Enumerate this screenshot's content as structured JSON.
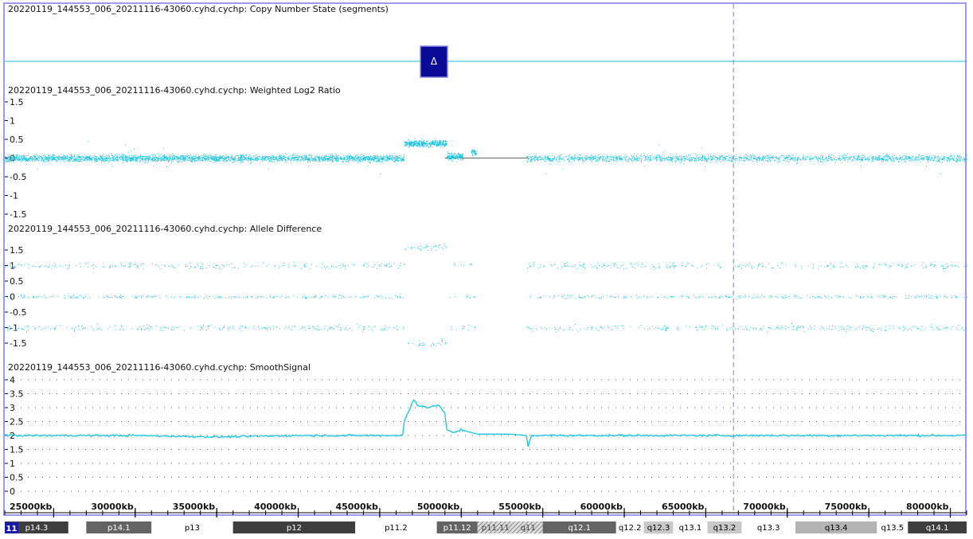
{
  "colors": {
    "frame": "#9b9bef",
    "data": "#19c3df",
    "segment_line": "#22bcd4",
    "cursor": "#9a9ae6",
    "selector_fill": "#0a0a96",
    "selector_border": "#8a8ae0"
  },
  "cursor_position_kb": 66700,
  "tracks": {
    "cn_state": {
      "title": "20220119_144553_006_20211116-43060.cyhd.cychp: Copy Number State (segments)",
      "selector_symbol": "Δ",
      "selector_icon": "delta-icon",
      "selector_position_kb": 47200
    },
    "log2": {
      "title": "20220119_144553_006_20211116-43060.cyhd.cychp: Weighted Log2 Ratio",
      "ticks": [
        "1.5",
        "1",
        "0.5",
        "0",
        "-0.5",
        "-1",
        "-1.5"
      ]
    },
    "allele": {
      "title": "20220119_144553_006_20211116-43060.cyhd.cychp: Allele Difference",
      "ticks": [
        "1.5",
        "1",
        "0.5",
        "0",
        "-0.5",
        "-1",
        "-1.5"
      ]
    },
    "smooth": {
      "title": "20220119_144553_006_20211116-43060.cyhd.cychp: SmoothSignal",
      "ticks": [
        "4",
        "3.5",
        "3",
        "2.5",
        "2",
        "1.5",
        "1",
        "0.5",
        "0"
      ]
    }
  },
  "chart_data": [
    {
      "type": "scatter",
      "title": "20220119_144553_006_20211116-43060.cyhd.cychp: Weighted Log2 Ratio",
      "xlim": [
        22000,
        81000
      ],
      "ylim": [
        -1.5,
        1.5
      ],
      "series": [
        {
          "segments": [
            {
              "x": [
                22000,
                46500
              ],
              "mean": 0.0
            },
            {
              "x": [
                46500,
                49100
              ],
              "mean": 0.4
            },
            {
              "x": [
                49100,
                50100
              ],
              "mean": 0.05
            },
            {
              "x": [
                50600,
                50900
              ],
              "mean": 0.15
            },
            {
              "x": [
                54000,
                81000
              ],
              "mean": 0.0
            }
          ]
        }
      ],
      "gap_line": {
        "x": [
          49000,
          54100
        ],
        "y": 0
      }
    },
    {
      "type": "scatter",
      "title": "20220119_144553_006_20211116-43060.cyhd.cychp: Allele Difference",
      "xlim": [
        22000,
        81000
      ],
      "ylim": [
        -1.5,
        1.5
      ],
      "bands": [
        1,
        0,
        -1
      ],
      "split_bands_region": {
        "x": [
          46500,
          49100
        ],
        "values": [
          1.6,
          -1.5
        ]
      }
    },
    {
      "type": "line",
      "title": "20220119_144553_006_20211116-43060.cyhd.cychp: SmoothSignal",
      "xlim": [
        22000,
        81000
      ],
      "ylim": [
        0,
        4
      ],
      "series": [
        {
          "x": [
            22000,
            30000,
            35000,
            40000,
            46400,
            46500,
            47100,
            47300,
            48000,
            48600,
            49000,
            49100,
            49500,
            50000,
            51000,
            52000,
            53000,
            54000,
            54100,
            54300,
            55000,
            60000,
            65000,
            70000,
            75000,
            80000,
            81000
          ],
          "values": [
            2.0,
            2.0,
            1.95,
            2.0,
            2.0,
            2.5,
            3.3,
            3.1,
            3.0,
            3.1,
            2.8,
            2.2,
            2.1,
            2.2,
            2.05,
            2.05,
            2.05,
            2.0,
            1.6,
            2.0,
            2.0,
            2.0,
            2.0,
            2.0,
            2.0,
            2.0,
            2.0
          ]
        }
      ]
    }
  ],
  "x_axis": {
    "ticks": [
      {
        "kb": 25000,
        "label": "25000kb"
      },
      {
        "kb": 30000,
        "label": "30000kb"
      },
      {
        "kb": 35000,
        "label": "35000kb"
      },
      {
        "kb": 40000,
        "label": "40000kb"
      },
      {
        "kb": 45000,
        "label": "45000kb"
      },
      {
        "kb": 50000,
        "label": "50000kb"
      },
      {
        "kb": 55000,
        "label": "55000kb"
      },
      {
        "kb": 60000,
        "label": "60000kb"
      },
      {
        "kb": 65000,
        "label": "65000kb"
      },
      {
        "kb": 70000,
        "label": "70000kb"
      },
      {
        "kb": 75000,
        "label": "75000kb"
      },
      {
        "kb": 80000,
        "label": "80000kb"
      }
    ]
  },
  "ideogram": {
    "chromosome": "11",
    "bands": [
      {
        "label": "p14.3",
        "start_kb": 22000,
        "end_kb": 25900,
        "fill": "#3e3e3e",
        "text": "#ffffff"
      },
      {
        "label": "",
        "start_kb": 25900,
        "end_kb": 27000,
        "fill": "#ffffff",
        "text": "#000000"
      },
      {
        "label": "p14.1",
        "start_kb": 27000,
        "end_kb": 31000,
        "fill": "#646464",
        "text": "#ffffff"
      },
      {
        "label": "p13",
        "start_kb": 31000,
        "end_kb": 36000,
        "fill": "#ffffff",
        "text": "#000000"
      },
      {
        "label": "p12",
        "start_kb": 36000,
        "end_kb": 43500,
        "fill": "#3e3e3e",
        "text": "#ffffff"
      },
      {
        "label": "p11.2",
        "start_kb": 43500,
        "end_kb": 48500,
        "fill": "#ffffff",
        "text": "#000000"
      },
      {
        "label": "p11.12",
        "start_kb": 48500,
        "end_kb": 51000,
        "fill": "#646464",
        "text": "#ffffff"
      },
      {
        "label": "p11.11",
        "start_kb": 51000,
        "end_kb": 53200,
        "fill": "hatch",
        "text": "#444444"
      },
      {
        "label": "q11",
        "start_kb": 53200,
        "end_kb": 55000,
        "fill": "hatch",
        "text": "#444444"
      },
      {
        "label": "q12.1",
        "start_kb": 55000,
        "end_kb": 59500,
        "fill": "#646464",
        "text": "#ffffff"
      },
      {
        "label": "q12.2",
        "start_kb": 59500,
        "end_kb": 61200,
        "fill": "#ffffff",
        "text": "#000000"
      },
      {
        "label": "q12.3",
        "start_kb": 61200,
        "end_kb": 63000,
        "fill": "#c8c8c8",
        "text": "#000000"
      },
      {
        "label": "q13.1",
        "start_kb": 63000,
        "end_kb": 65100,
        "fill": "#ffffff",
        "text": "#000000"
      },
      {
        "label": "q13.2",
        "start_kb": 65100,
        "end_kb": 67200,
        "fill": "#c8c8c8",
        "text": "#000000"
      },
      {
        "label": "q13.3",
        "start_kb": 67200,
        "end_kb": 70500,
        "fill": "#ffffff",
        "text": "#000000"
      },
      {
        "label": "q13.4",
        "start_kb": 70500,
        "end_kb": 75500,
        "fill": "#b4b4b4",
        "text": "#000000"
      },
      {
        "label": "q13.5",
        "start_kb": 75500,
        "end_kb": 77400,
        "fill": "#ffffff",
        "text": "#000000"
      },
      {
        "label": "q14.1",
        "start_kb": 77400,
        "end_kb": 81000,
        "fill": "#3e3e3e",
        "text": "#ffffff"
      }
    ]
  }
}
